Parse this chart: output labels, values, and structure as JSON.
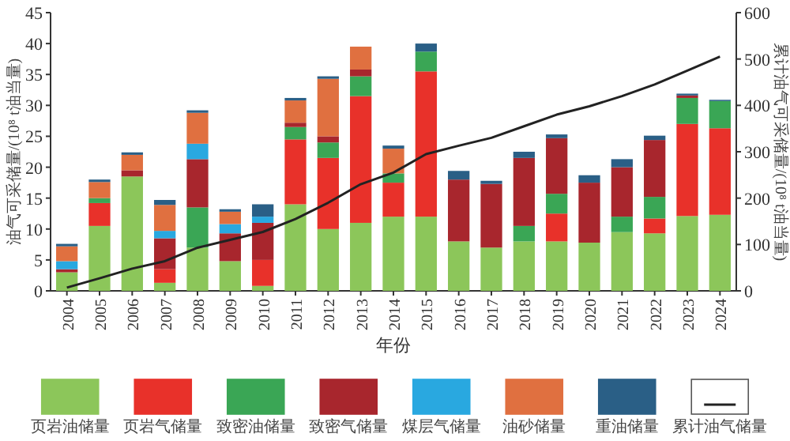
{
  "chart_data": {
    "type": "bar",
    "stacked": true,
    "xlabel": "年份",
    "ylabel": "油气可采储量/(10⁸ t油当量)",
    "y2label": "累计油气可采储量/(10⁸ t油当量)",
    "categories": [
      "2004",
      "2005",
      "2006",
      "2007",
      "2008",
      "2009",
      "2010",
      "2011",
      "2012",
      "2013",
      "2014",
      "2015",
      "2016",
      "2017",
      "2018",
      "2019",
      "2020",
      "2021",
      "2022",
      "2023",
      "2024"
    ],
    "ylim": [
      0,
      45
    ],
    "yticks": [
      0,
      5,
      10,
      15,
      20,
      25,
      30,
      35,
      40,
      45
    ],
    "y2lim": [
      0,
      600
    ],
    "y2ticks": [
      0,
      100,
      200,
      300,
      400,
      500,
      600
    ],
    "grid": false,
    "legend": "bottom",
    "series": [
      {
        "name": "页岩油储量",
        "color": "#8cc65a",
        "values": [
          3.0,
          10.5,
          18.5,
          1.3,
          7.0,
          4.8,
          0.8,
          14,
          10,
          11,
          12,
          12,
          8,
          7,
          8,
          8,
          7.8,
          9.5,
          9.3,
          12.1,
          12.3
        ]
      },
      {
        "name": "页岩气储量",
        "color": "#e8312a",
        "values": [
          null,
          3.7,
          null,
          2.2,
          null,
          null,
          4.2,
          10.5,
          11.5,
          20.5,
          5.5,
          23.5,
          null,
          null,
          null,
          4.5,
          null,
          null,
          2.4,
          14.9,
          14.0
        ]
      },
      {
        "name": "致密油储量",
        "color": "#3aa655",
        "values": [
          null,
          0.8,
          null,
          null,
          6.5,
          null,
          null,
          2.0,
          2.5,
          3.2,
          1.5,
          3.2,
          null,
          null,
          2.5,
          3.2,
          null,
          2.5,
          3.5,
          4.2,
          4.4
        ]
      },
      {
        "name": "致密气储量",
        "color": "#a8262d",
        "values": [
          0.5,
          null,
          1.0,
          5.0,
          7.8,
          4.5,
          6.0,
          0.7,
          1.0,
          1.1,
          null,
          null,
          10,
          10.3,
          11,
          9,
          9.7,
          8,
          9.2,
          0.4,
          null
        ]
      },
      {
        "name": "煤层气储量",
        "color": "#29a8e0",
        "values": [
          1.3,
          null,
          null,
          1.2,
          2.5,
          1.5,
          1.0,
          null,
          null,
          null,
          null,
          null,
          null,
          null,
          null,
          null,
          null,
          null,
          null,
          null,
          null
        ]
      },
      {
        "name": "油砂储量",
        "color": "#e07040",
        "values": [
          2.4,
          2.6,
          2.5,
          4.2,
          5.0,
          2.0,
          null,
          3.6,
          9.3,
          3.7,
          4.0,
          null,
          null,
          null,
          null,
          null,
          null,
          null,
          null,
          null,
          null
        ]
      },
      {
        "name": "重油储量",
        "color": "#2a5f86",
        "values": [
          0.4,
          0.4,
          0.4,
          0.8,
          0.4,
          0.4,
          2.0,
          0.4,
          0.4,
          null,
          0.5,
          1.3,
          1.4,
          0.5,
          1.0,
          0.6,
          1.2,
          1.3,
          0.7,
          0.3,
          0.2
        ]
      },
      {
        "name": "累计油气储量",
        "type": "line",
        "axis": "y2",
        "color": "#222222",
        "values": [
          7,
          27,
          48,
          64,
          93,
          110,
          127,
          155,
          190,
          230,
          255,
          295,
          313,
          330,
          355,
          380,
          398,
          420,
          445,
          475,
          505
        ]
      }
    ]
  }
}
